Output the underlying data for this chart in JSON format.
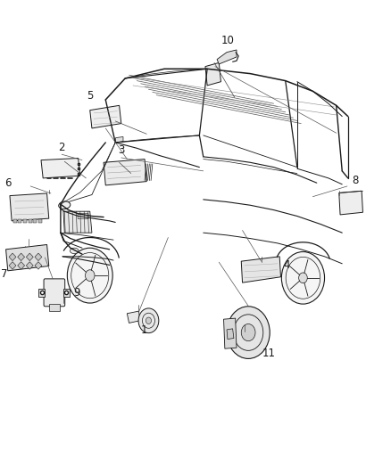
{
  "background_color": "#ffffff",
  "figsize": [
    4.38,
    5.33
  ],
  "dpi": 100,
  "line_color": "#1a1a1a",
  "label_fontsize": 8.5,
  "labels": {
    "1": [
      0.465,
      0.295,
      "right"
    ],
    "2": [
      0.22,
      0.595,
      "right"
    ],
    "3": [
      0.37,
      0.575,
      "right"
    ],
    "4": [
      0.76,
      0.405,
      "right"
    ],
    "5": [
      0.31,
      0.72,
      "right"
    ],
    "6": [
      0.07,
      0.53,
      "right"
    ],
    "7": [
      0.065,
      0.42,
      "right"
    ],
    "8": [
      0.87,
      0.535,
      "right"
    ],
    "9": [
      0.19,
      0.365,
      "right"
    ],
    "10": [
      0.6,
      0.855,
      "right"
    ],
    "11": [
      0.66,
      0.29,
      "right"
    ]
  }
}
